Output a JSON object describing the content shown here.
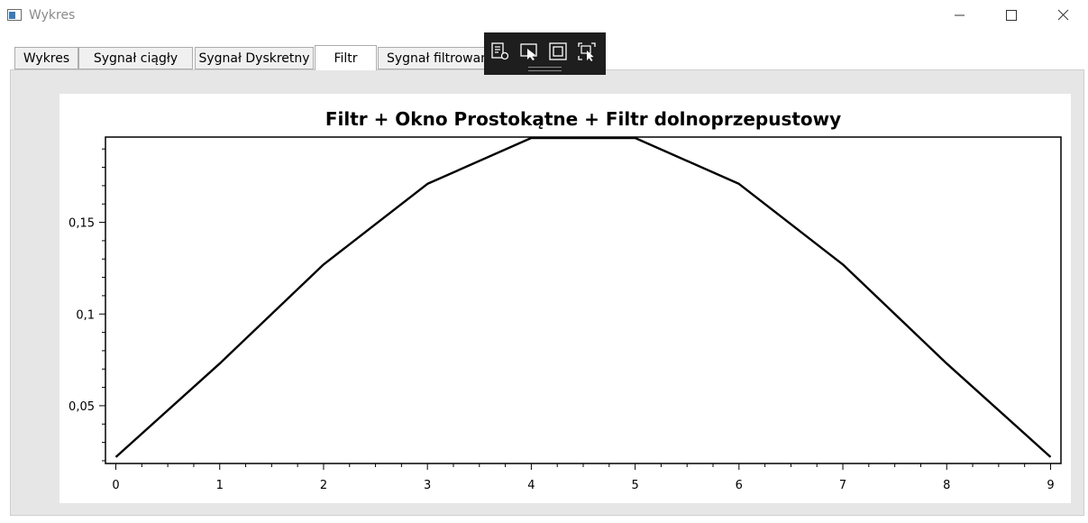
{
  "window": {
    "title": "Wykres"
  },
  "tabs": [
    {
      "label": "Wykres"
    },
    {
      "label": "Sygnał ciągły"
    },
    {
      "label": "Sygnał Dyskretny"
    },
    {
      "label": "Filtr"
    },
    {
      "label": "Sygnał filtrowany"
    }
  ],
  "active_tab": "Filtr",
  "toolbar": {
    "icons": [
      "properties-icon",
      "select-element-icon",
      "display-layout-adorners-icon",
      "track-focused-element-icon"
    ]
  },
  "chart_data": {
    "type": "line",
    "title": "Filtr + Okno Prostokątne + Filtr dolnoprzepustowy",
    "xlabel": "",
    "ylabel": "",
    "x": [
      0,
      1,
      2,
      3,
      4,
      5,
      6,
      7,
      8,
      9
    ],
    "series": [
      {
        "values": [
          0.022,
          0.073,
          0.127,
          0.171,
          0.196,
          0.196,
          0.171,
          0.127,
          0.073,
          0.022
        ]
      }
    ],
    "x_ticks": [
      "0",
      "1",
      "2",
      "3",
      "4",
      "5",
      "6",
      "7",
      "8",
      "9"
    ],
    "y_ticks": [
      "0,05",
      "0,1",
      "0,15"
    ],
    "y_tick_values": [
      0.05,
      0.1,
      0.15
    ],
    "xlim": [
      -0.1,
      9.1
    ],
    "ylim": [
      0.0185,
      0.1965
    ],
    "line_color": "#000000",
    "grid": false,
    "legend": "none"
  }
}
